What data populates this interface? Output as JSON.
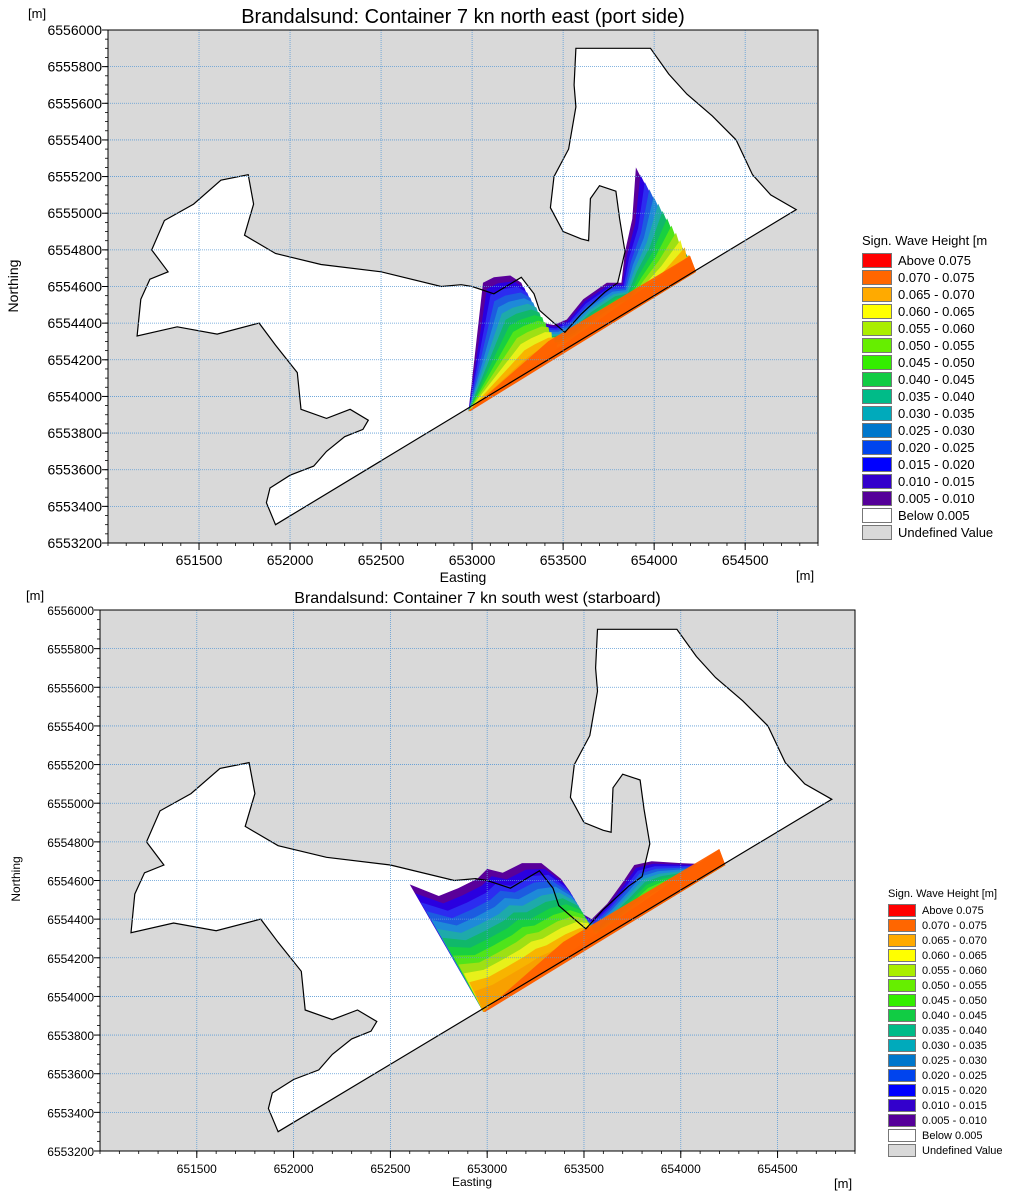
{
  "charts": [
    {
      "type": "heatmap",
      "title": "Brandalsund: Container 7 kn north east (port side)",
      "xlabel": "Easting",
      "ylabel": "Northing",
      "x_unit": "[m]",
      "y_unit": "[m]",
      "xlim": [
        651000,
        654900
      ],
      "ylim": [
        6553200,
        6556000
      ],
      "x_ticks": [
        651500,
        652000,
        652500,
        653000,
        653500,
        654000,
        654500
      ],
      "x_tick_labels": [
        "651500",
        "652000",
        "652500",
        "653000",
        "653500",
        "654000",
        "654500"
      ],
      "y_ticks": [
        6553200,
        6553400,
        6553600,
        6553800,
        6554000,
        6554200,
        6554400,
        6554600,
        6554800,
        6555000,
        6555200,
        6555400,
        6555600,
        6555800,
        6556000
      ],
      "y_tick_labels": [
        "6553200",
        "6553400",
        "6553600",
        "6553800",
        "6554000",
        "6554200",
        "6554400",
        "6554600",
        "6554800",
        "6555000",
        "6555200",
        "6555400",
        "6555600",
        "6555800",
        "6556000"
      ],
      "grid": true,
      "legend_position": "right",
      "legend_title": "Sign. Wave Height [m",
      "land_outline": [
        [
          651920,
          6553300
        ],
        [
          651870,
          6553420
        ],
        [
          651890,
          6553500
        ],
        [
          652000,
          6553570
        ],
        [
          652130,
          6553620
        ],
        [
          652200,
          6553700
        ],
        [
          652300,
          6553780
        ],
        [
          652400,
          6553820
        ],
        [
          652430,
          6553870
        ],
        [
          652330,
          6553930
        ],
        [
          652200,
          6553880
        ],
        [
          652060,
          6553930
        ],
        [
          652040,
          6554130
        ],
        [
          651920,
          6554280
        ],
        [
          651830,
          6554400
        ],
        [
          651600,
          6554340
        ],
        [
          651380,
          6554380
        ],
        [
          651160,
          6554330
        ],
        [
          651180,
          6554530
        ],
        [
          651230,
          6554640
        ],
        [
          651330,
          6554680
        ],
        [
          651240,
          6554800
        ],
        [
          651310,
          6554960
        ],
        [
          651470,
          6555050
        ],
        [
          651620,
          6555180
        ],
        [
          651770,
          6555210
        ],
        [
          651800,
          6555050
        ],
        [
          651750,
          6554880
        ],
        [
          651920,
          6554780
        ],
        [
          652170,
          6554720
        ],
        [
          652500,
          6554680
        ],
        [
          652830,
          6554600
        ],
        [
          652940,
          6554610
        ],
        [
          653000,
          6554600
        ],
        [
          653120,
          6554560
        ],
        [
          653270,
          6554650
        ],
        [
          653340,
          6554560
        ],
        [
          653370,
          6554470
        ],
        [
          653450,
          6554400
        ],
        [
          653510,
          6554350
        ],
        [
          653600,
          6554450
        ],
        [
          653730,
          6554570
        ],
        [
          653800,
          6554620
        ],
        [
          653840,
          6554790
        ],
        [
          653810,
          6554970
        ],
        [
          653790,
          6555120
        ],
        [
          653700,
          6555150
        ],
        [
          653650,
          6555080
        ],
        [
          653640,
          6554850
        ],
        [
          653600,
          6554860
        ],
        [
          653500,
          6554900
        ],
        [
          653430,
          6555030
        ],
        [
          653450,
          6555200
        ],
        [
          653530,
          6555350
        ],
        [
          653570,
          6555580
        ],
        [
          653560,
          6555700
        ],
        [
          653570,
          6555900
        ],
        [
          653980,
          6555900
        ],
        [
          654080,
          6555760
        ],
        [
          654180,
          6555650
        ],
        [
          654320,
          6555530
        ],
        [
          654450,
          6555400
        ],
        [
          654540,
          6555210
        ],
        [
          654640,
          6555100
        ],
        [
          654780,
          6555020
        ],
        [
          651920,
          6553300
        ]
      ],
      "wave_polygon": [
        [
          652980,
          6553920
        ],
        [
          653060,
          6554620
        ],
        [
          653120,
          6554650
        ],
        [
          653210,
          6554660
        ],
        [
          653270,
          6554620
        ],
        [
          653330,
          6554480
        ],
        [
          653390,
          6554400
        ],
        [
          653450,
          6554390
        ],
        [
          653520,
          6554420
        ],
        [
          653610,
          6554530
        ],
        [
          653740,
          6554620
        ],
        [
          653820,
          6554620
        ],
        [
          653840,
          6554790
        ],
        [
          653880,
          6554970
        ],
        [
          653900,
          6555250
        ],
        [
          653950,
          6555150
        ],
        [
          654050,
          6554950
        ],
        [
          654150,
          6554820
        ],
        [
          654230,
          6554680
        ]
      ],
      "color_bands": [
        "#5a009a",
        "#2a00e0",
        "#2c2cf0",
        "#1c5ce0",
        "#1e8ad8",
        "#1eaaaa",
        "#10b86a",
        "#18d040",
        "#50e41a",
        "#9ee014",
        "#e8f01a",
        "#f8b400",
        "#f8a000"
      ],
      "legend_items": [
        {
          "label": "Above  0.075",
          "color": "#ff0000"
        },
        {
          "label": "0.070 - 0.075",
          "color": "#ff6600"
        },
        {
          "label": "0.065 - 0.070",
          "color": "#ffaa00"
        },
        {
          "label": "0.060 - 0.065",
          "color": "#ffff00"
        },
        {
          "label": "0.055 - 0.060",
          "color": "#aaee00"
        },
        {
          "label": "0.050 - 0.055",
          "color": "#66ee00"
        },
        {
          "label": "0.045 - 0.050",
          "color": "#33ee00"
        },
        {
          "label": "0.040 - 0.045",
          "color": "#11cc44"
        },
        {
          "label": "0.035 - 0.040",
          "color": "#00bb88"
        },
        {
          "label": "0.030 - 0.035",
          "color": "#00aabb"
        },
        {
          "label": "0.025 - 0.030",
          "color": "#0077cc"
        },
        {
          "label": "0.020 - 0.025",
          "color": "#0044ee"
        },
        {
          "label": "0.015 - 0.020",
          "color": "#0000ff"
        },
        {
          "label": "0.010 - 0.015",
          "color": "#3300cc"
        },
        {
          "label": "0.005 - 0.010",
          "color": "#550099"
        },
        {
          "label": "Below  0.005",
          "color": "#ffffff"
        },
        {
          "label": "Undefined Value",
          "color": "#d9d9d9"
        }
      ]
    },
    {
      "type": "heatmap",
      "title": "Brandalsund: Container 7 kn south west (starboard)",
      "xlabel": "Easting",
      "ylabel": "Northing",
      "x_unit": "[m]",
      "y_unit": "[m]",
      "xlim": [
        651000,
        654900
      ],
      "ylim": [
        6553200,
        6556000
      ],
      "x_ticks": [
        651500,
        652000,
        652500,
        653000,
        653500,
        654000,
        654500
      ],
      "x_tick_labels": [
        "651500",
        "652000",
        "652500",
        "653000",
        "653500",
        "654000",
        "654500"
      ],
      "y_ticks": [
        6553200,
        6553400,
        6553600,
        6553800,
        6554000,
        6554200,
        6554400,
        6554600,
        6554800,
        6555000,
        6555200,
        6555400,
        6555600,
        6555800,
        6556000
      ],
      "y_tick_labels": [
        "6553200",
        "6553400",
        "6553600",
        "6553800",
        "6554000",
        "6554200",
        "6554400",
        "6554600",
        "6554800",
        "6555000",
        "6555200",
        "6555400",
        "6555600",
        "6555800",
        "6556000"
      ],
      "grid": true,
      "legend_position": "bottom-right",
      "legend_title": "Sign. Wave Height [m]",
      "land_outline": [
        [
          651920,
          6553300
        ],
        [
          651870,
          6553420
        ],
        [
          651890,
          6553500
        ],
        [
          652000,
          6553570
        ],
        [
          652130,
          6553620
        ],
        [
          652200,
          6553700
        ],
        [
          652300,
          6553780
        ],
        [
          652400,
          6553820
        ],
        [
          652430,
          6553870
        ],
        [
          652330,
          6553930
        ],
        [
          652200,
          6553880
        ],
        [
          652060,
          6553930
        ],
        [
          652040,
          6554130
        ],
        [
          651920,
          6554280
        ],
        [
          651830,
          6554400
        ],
        [
          651600,
          6554340
        ],
        [
          651380,
          6554380
        ],
        [
          651160,
          6554330
        ],
        [
          651180,
          6554530
        ],
        [
          651230,
          6554640
        ],
        [
          651330,
          6554680
        ],
        [
          651240,
          6554800
        ],
        [
          651310,
          6554960
        ],
        [
          651470,
          6555050
        ],
        [
          651620,
          6555180
        ],
        [
          651770,
          6555210
        ],
        [
          651800,
          6555050
        ],
        [
          651750,
          6554880
        ],
        [
          651920,
          6554780
        ],
        [
          652170,
          6554720
        ],
        [
          652500,
          6554680
        ],
        [
          652830,
          6554600
        ],
        [
          652940,
          6554610
        ],
        [
          653000,
          6554600
        ],
        [
          653120,
          6554560
        ],
        [
          653270,
          6554650
        ],
        [
          653340,
          6554560
        ],
        [
          653370,
          6554470
        ],
        [
          653450,
          6554400
        ],
        [
          653510,
          6554350
        ],
        [
          653600,
          6554450
        ],
        [
          653730,
          6554570
        ],
        [
          653800,
          6554620
        ],
        [
          653840,
          6554790
        ],
        [
          653810,
          6554970
        ],
        [
          653790,
          6555120
        ],
        [
          653700,
          6555150
        ],
        [
          653650,
          6555080
        ],
        [
          653640,
          6554850
        ],
        [
          653600,
          6554860
        ],
        [
          653500,
          6554900
        ],
        [
          653430,
          6555030
        ],
        [
          653450,
          6555200
        ],
        [
          653530,
          6555350
        ],
        [
          653570,
          6555580
        ],
        [
          653560,
          6555700
        ],
        [
          653570,
          6555900
        ],
        [
          653980,
          6555900
        ],
        [
          654080,
          6555760
        ],
        [
          654180,
          6555650
        ],
        [
          654320,
          6555530
        ],
        [
          654450,
          6555400
        ],
        [
          654540,
          6555210
        ],
        [
          654640,
          6555100
        ],
        [
          654780,
          6555020
        ],
        [
          651920,
          6553300
        ]
      ],
      "wave_polygon": [
        [
          652980,
          6553920
        ],
        [
          652600,
          6554580
        ],
        [
          652750,
          6554520
        ],
        [
          652850,
          6554560
        ],
        [
          652950,
          6554610
        ],
        [
          653000,
          6554660
        ],
        [
          653080,
          6554640
        ],
        [
          653180,
          6554690
        ],
        [
          653280,
          6554690
        ],
        [
          653380,
          6554610
        ],
        [
          653430,
          6554540
        ],
        [
          653470,
          6554440
        ],
        [
          653540,
          6554400
        ],
        [
          653620,
          6554480
        ],
        [
          653700,
          6554590
        ],
        [
          653760,
          6554680
        ],
        [
          653850,
          6554700
        ],
        [
          654000,
          6554690
        ],
        [
          654230,
          6554680
        ]
      ],
      "color_bands": [
        "#5a009a",
        "#2a00e0",
        "#2c2cf0",
        "#1c5ce0",
        "#1e8ad8",
        "#1eaaaa",
        "#10b86a",
        "#18d040",
        "#50e41a",
        "#9ee014",
        "#e8f01a",
        "#f8b400",
        "#f8a000"
      ],
      "legend_items": [
        {
          "label": "Above  0.075",
          "color": "#ff0000"
        },
        {
          "label": "0.070 - 0.075",
          "color": "#ff6600"
        },
        {
          "label": "0.065 - 0.070",
          "color": "#ffaa00"
        },
        {
          "label": "0.060 - 0.065",
          "color": "#ffff00"
        },
        {
          "label": "0.055 - 0.060",
          "color": "#aaee00"
        },
        {
          "label": "0.050 - 0.055",
          "color": "#66ee00"
        },
        {
          "label": "0.045 - 0.050",
          "color": "#33ee00"
        },
        {
          "label": "0.040 - 0.045",
          "color": "#11cc44"
        },
        {
          "label": "0.035 - 0.040",
          "color": "#00bb88"
        },
        {
          "label": "0.030 - 0.035",
          "color": "#00aabb"
        },
        {
          "label": "0.025 - 0.030",
          "color": "#0077cc"
        },
        {
          "label": "0.020 - 0.025",
          "color": "#0044ee"
        },
        {
          "label": "0.015 - 0.020",
          "color": "#0000ff"
        },
        {
          "label": "0.010 - 0.015",
          "color": "#3300cc"
        },
        {
          "label": "0.005 - 0.010",
          "color": "#550099"
        },
        {
          "label": "Below  0.005",
          "color": "#ffffff"
        },
        {
          "label": "Undefined Value",
          "color": "#d9d9d9"
        }
      ]
    }
  ],
  "colors": {
    "undefined_background": "#d9d9d9",
    "gridline": "#5b9bd5",
    "coastline": "#000000",
    "land": "#ffffff",
    "max_band": "#ff6000"
  }
}
